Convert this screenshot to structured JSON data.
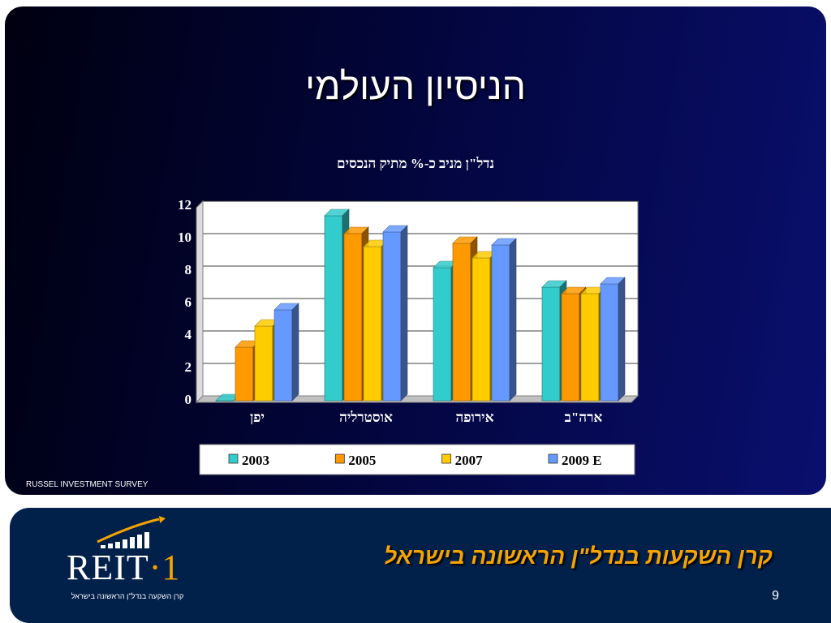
{
  "slide": {
    "title": "הניסיון העולמי",
    "source_note": "RUSSEL INVESTMENT SURVEY"
  },
  "chart_data": {
    "type": "bar",
    "title": "נדל\"ן מניב כ-% מתיק הנכסים",
    "categories": [
      "ארה\"ב",
      "אירופה",
      "אוסטרליה",
      "יפן"
    ],
    "category_order": "right-to-left",
    "series": [
      {
        "name": "2003",
        "values": [
          7.0,
          8.2,
          11.4,
          0
        ],
        "color": "#33cccc"
      },
      {
        "name": "2005",
        "values": [
          6.6,
          9.7,
          10.3,
          3.3
        ],
        "color": "#ff9900"
      },
      {
        "name": "2007",
        "values": [
          6.6,
          8.8,
          9.5,
          4.6
        ],
        "color": "#ffcc00"
      },
      {
        "name": "2009 E",
        "values": [
          7.2,
          9.6,
          10.4,
          5.6
        ],
        "color": "#6699ff"
      }
    ],
    "yticks": [
      0,
      2,
      4,
      6,
      8,
      10,
      12
    ],
    "ylim": [
      0,
      12
    ],
    "xlabel": "",
    "ylabel": "",
    "grid": true,
    "legend_position": "bottom",
    "style": "3d"
  },
  "footer": {
    "logo_text": "REIT",
    "logo_accent": "1",
    "logo_tagline": "קרן השקעה בנדל\"ן הראשונה בישראל",
    "tagline": "קרן השקעות בנדל\"ן הראשונה בישראל",
    "page_number": "9"
  }
}
